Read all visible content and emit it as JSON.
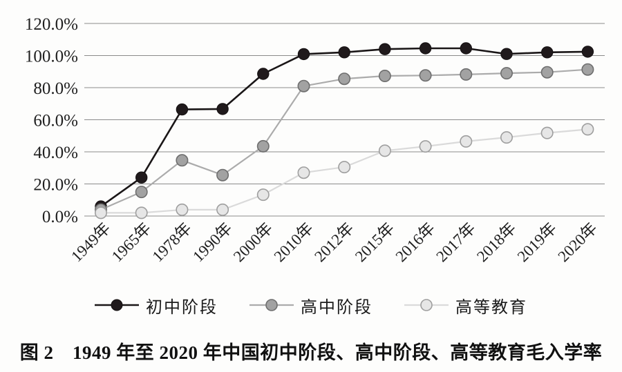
{
  "chart_data": {
    "type": "line",
    "caption": "图 2　1949 年至 2020 年中国初中阶段、高中阶段、高等教育毛入学率",
    "categories": [
      "1949年",
      "1965年",
      "1978年",
      "1990年",
      "2000年",
      "2010年",
      "2012年",
      "2015年",
      "2016年",
      "2017年",
      "2018年",
      "2019年",
      "2020年"
    ],
    "series": [
      {
        "name": "初中阶段",
        "values": [
          6.0,
          24.0,
          66.4,
          66.7,
          88.6,
          100.9,
          102.0,
          104.0,
          104.5,
          104.5,
          101.0,
          102.0,
          102.4
        ],
        "line_color": "#1a1617",
        "marker_fill": "#201a1c",
        "marker_stroke": "#141011"
      },
      {
        "name": "高中阶段",
        "values": [
          4.0,
          15.0,
          34.7,
          25.5,
          43.5,
          81.0,
          85.5,
          87.3,
          87.6,
          88.2,
          89.0,
          89.6,
          91.3
        ],
        "line_color": "#ababab",
        "marker_fill": "#a2a2a2",
        "marker_stroke": "#6e6e6e"
      },
      {
        "name": "高等教育",
        "values": [
          2.0,
          2.0,
          3.9,
          3.9,
          13.3,
          27.0,
          30.5,
          40.7,
          43.4,
          46.5,
          49.0,
          51.8,
          54.0
        ],
        "line_color": "#dadada",
        "marker_fill": "#e6e6e6",
        "marker_stroke": "#9e9e9e"
      }
    ],
    "y_axis": {
      "min": 0,
      "max": 120,
      "step": 20,
      "tick_labels": [
        "0.0%",
        "20.0%",
        "40.0%",
        "60.0%",
        "80.0%",
        "100.0%",
        "120.0%"
      ]
    },
    "grid": true,
    "gridline_color": "#8a8a8a",
    "legend_position": "bottom",
    "background": "#fdfdfc"
  }
}
